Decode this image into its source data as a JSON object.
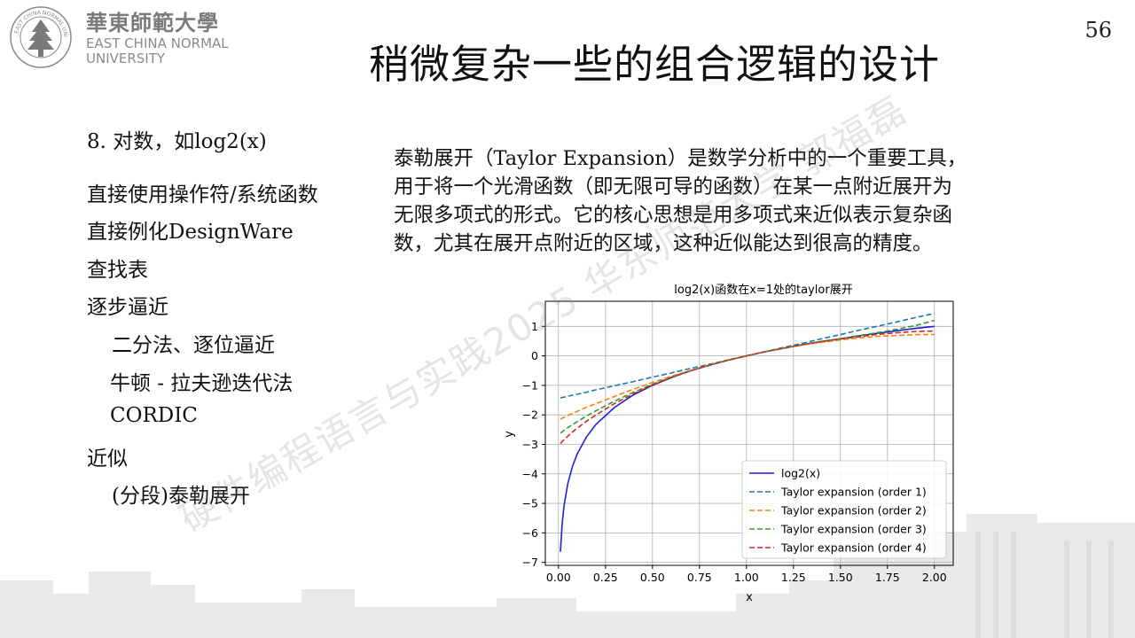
{
  "header": {
    "logo_cn": "華東師範大學",
    "logo_en_line1": "EAST CHINA NORMAL",
    "logo_en_line2": "UNIVERSITY",
    "seal_text": "EAST CHINA NORMAL UNIVERSITY"
  },
  "slide": {
    "title": "稍微复杂一些的组合逻辑的设计",
    "page_number": "56"
  },
  "left_list": [
    {
      "text": "8. 对数，如log2(x)"
    },
    {
      "text": "直接使用操作符/系统函数"
    },
    {
      "text": "直接例化DesignWare"
    },
    {
      "text": "查找表"
    },
    {
      "text": "逐步逼近"
    },
    {
      "text": "二分法、逐位逼近"
    },
    {
      "text": "牛顿 - 拉夫逊迭代法"
    },
    {
      "text": "CORDIC"
    },
    {
      "text": "近似"
    },
    {
      "text": "(分段)泰勒展开"
    }
  ],
  "paragraph": [
    "泰勒展开（Taylor  Expansion）是数学分析中的一个重要工具，",
    "用于将一个光滑函数（即无限可导的函数）在某一点附近展开为",
    "无限多项式的形式。它的核心思想是用多项式来近似表示复杂函",
    "数，尤其在展开点附近的区域，这种近似能达到很高的精度。"
  ],
  "watermark": "硬件编程语言与实践2025 华东师范大学 郭福磊",
  "chart_data": {
    "type": "line",
    "title": "log2(x)函数在x=1处的taylor展开",
    "xlabel": "x",
    "ylabel": "y",
    "xlim": [
      -0.07,
      2.1
    ],
    "ylim": [
      -7.1,
      1.85
    ],
    "xticks": [
      0.0,
      0.25,
      0.5,
      0.75,
      1.0,
      1.25,
      1.5,
      1.75,
      2.0
    ],
    "xtick_labels": [
      "0.00",
      "0.25",
      "0.50",
      "0.75",
      "1.00",
      "1.25",
      "1.50",
      "1.75",
      "2.00"
    ],
    "yticks": [
      -7,
      -6,
      -5,
      -4,
      -3,
      -2,
      -1,
      0,
      1
    ],
    "ytick_labels": [
      "−7",
      "−6",
      "−5",
      "−4",
      "−3",
      "−2",
      "−1",
      "0",
      "1"
    ],
    "grid": true,
    "legend_position": "lower-right",
    "x": [
      0.01,
      0.02,
      0.03,
      0.05,
      0.075,
      0.1,
      0.15,
      0.2,
      0.3,
      0.4,
      0.5,
      0.6,
      0.7,
      0.8,
      0.9,
      1.0,
      1.1,
      1.2,
      1.3,
      1.4,
      1.5,
      1.6,
      1.7,
      1.8,
      1.9,
      2.0
    ],
    "series": [
      {
        "name": "log2(x)",
        "color": "#1f1fd6",
        "dash": "solid",
        "values": [
          -6.64,
          -5.64,
          -5.06,
          -4.32,
          -3.74,
          -3.32,
          -2.74,
          -2.32,
          -1.74,
          -1.32,
          -1.0,
          -0.74,
          -0.51,
          -0.32,
          -0.15,
          0.0,
          0.14,
          0.26,
          0.38,
          0.49,
          0.58,
          0.68,
          0.77,
          0.85,
          0.93,
          1.0
        ]
      },
      {
        "name": "Taylor expansion (order 1)",
        "color": "#1f77b4",
        "dash": "dashed",
        "values": [
          -1.43,
          -1.41,
          -1.4,
          -1.37,
          -1.33,
          -1.3,
          -1.23,
          -1.15,
          -1.01,
          -0.87,
          -0.72,
          -0.58,
          -0.43,
          -0.29,
          -0.14,
          0.0,
          0.14,
          0.29,
          0.43,
          0.58,
          0.72,
          0.87,
          1.01,
          1.15,
          1.3,
          1.44
        ]
      },
      {
        "name": "Taylor expansion (order 2)",
        "color": "#ff7f0e",
        "dash": "dashed",
        "values": [
          -2.14,
          -2.11,
          -2.08,
          -2.02,
          -1.95,
          -1.88,
          -1.74,
          -1.62,
          -1.37,
          -1.13,
          -0.9,
          -0.69,
          -0.5,
          -0.32,
          -0.15,
          0.0,
          0.14,
          0.26,
          0.37,
          0.46,
          0.54,
          0.61,
          0.66,
          0.69,
          0.72,
          0.72
        ]
      },
      {
        "name": "Taylor expansion (order 3)",
        "color": "#2ca02c",
        "dash": "dashed",
        "values": [
          -2.62,
          -2.57,
          -2.52,
          -2.43,
          -2.33,
          -2.23,
          -2.04,
          -1.86,
          -1.53,
          -1.23,
          -0.96,
          -0.72,
          -0.51,
          -0.32,
          -0.15,
          0.0,
          0.14,
          0.26,
          0.38,
          0.49,
          0.58,
          0.69,
          0.79,
          0.9,
          1.03,
          1.2
        ]
      },
      {
        "name": "Taylor expansion (order 4)",
        "color": "#d62728",
        "dash": "dashed",
        "values": [
          -2.97,
          -2.9,
          -2.84,
          -2.72,
          -2.58,
          -2.45,
          -2.21,
          -2.0,
          -1.61,
          -1.28,
          -0.99,
          -0.73,
          -0.51,
          -0.32,
          -0.15,
          0.0,
          0.14,
          0.26,
          0.38,
          0.48,
          0.57,
          0.65,
          0.73,
          0.78,
          0.83,
          0.84
        ]
      }
    ]
  }
}
